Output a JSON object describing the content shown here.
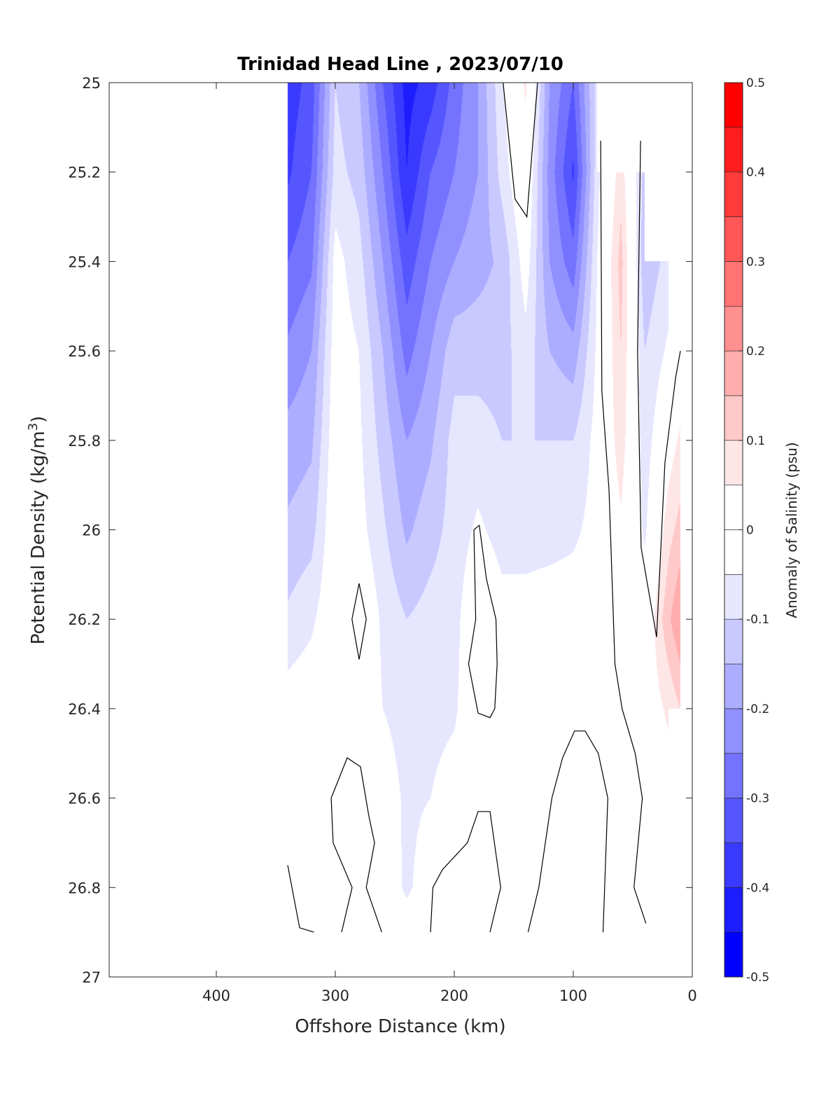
{
  "chart_data": {
    "type": "contourf",
    "title": "Trinidad Head Line , 2023/07/10",
    "xlabel": "Offshore Distance (km)",
    "ylabel": "Potential Density (kg/m",
    "ylabel_superscript": "3",
    "ylabel_suffix": ")",
    "xlim": [
      490,
      0
    ],
    "ylim": [
      27,
      25
    ],
    "x_direction": "reversed",
    "y_direction": "reversed (increasing downward)",
    "xticks": [
      400,
      300,
      200,
      100,
      0
    ],
    "xtick_labels": [
      "400",
      "300",
      "200",
      "100",
      "0"
    ],
    "yticks": [
      25,
      25.2,
      25.4,
      25.6,
      25.8,
      26,
      26.2,
      26.4,
      26.6,
      26.8,
      27
    ],
    "ytick_labels": [
      "25",
      "25.2",
      "25.4",
      "25.6",
      "25.8",
      "26",
      "26.2",
      "26.4",
      "26.6",
      "26.8",
      "27"
    ],
    "colorbar": {
      "label": "Anomaly of Salinity (psu)",
      "range": [
        -0.5,
        0.5
      ],
      "level_step": 0.05,
      "ticks": [
        0.5,
        0.4,
        0.3,
        0.2,
        0.1,
        0,
        -0.1,
        -0.2,
        -0.3,
        -0.4,
        -0.5
      ],
      "tick_labels": [
        "0.5",
        "0.4",
        "0.3",
        "0.2",
        "0.1",
        "0",
        "-0.1",
        "-0.2",
        "-0.3",
        "-0.4",
        "-0.5"
      ],
      "negative_color": "#0000ff",
      "positive_color": "#ff0000",
      "neutral_color": "#ffffff"
    },
    "grid": false,
    "x": [
      340,
      320,
      300,
      280,
      260,
      240,
      220,
      200,
      180,
      160,
      140,
      120,
      100,
      80,
      60,
      40,
      20,
      10
    ],
    "y": [
      25.0,
      25.2,
      25.4,
      25.6,
      25.8,
      26.0,
      26.2,
      26.4,
      26.6,
      26.8,
      26.9
    ],
    "z": [
      [
        -0.38,
        -0.33,
        -0.1,
        -0.15,
        -0.3,
        -0.42,
        -0.38,
        -0.28,
        -0.2,
        -0.06,
        0.06,
        -0.2,
        -0.3,
        -0.08,
        null,
        null,
        null,
        null
      ],
      [
        -0.36,
        -0.3,
        -0.08,
        -0.12,
        -0.25,
        -0.4,
        -0.3,
        -0.25,
        -0.2,
        -0.08,
        0.02,
        -0.22,
        -0.36,
        -0.07,
        0.08,
        -0.12,
        null,
        null
      ],
      [
        -0.3,
        -0.26,
        -0.03,
        -0.08,
        -0.2,
        -0.33,
        -0.25,
        -0.2,
        -0.17,
        -0.14,
        -0.02,
        -0.2,
        -0.28,
        -0.05,
        0.12,
        -0.14,
        -0.08,
        null
      ],
      [
        -0.24,
        -0.2,
        -0.02,
        -0.05,
        -0.15,
        -0.27,
        -0.2,
        -0.12,
        -0.12,
        -0.12,
        -0.07,
        -0.15,
        -0.18,
        -0.04,
        0.1,
        -0.1,
        -0.04,
        0.0
      ],
      [
        -0.18,
        -0.16,
        -0.01,
        -0.04,
        -0.12,
        -0.2,
        -0.16,
        -0.08,
        -0.08,
        -0.1,
        -0.1,
        -0.1,
        -0.1,
        -0.03,
        0.08,
        -0.08,
        0.02,
        0.06
      ],
      [
        -0.14,
        -0.12,
        0.0,
        -0.03,
        -0.09,
        -0.16,
        -0.12,
        -0.08,
        -0.04,
        -0.07,
        -0.07,
        -0.07,
        -0.06,
        -0.03,
        0.04,
        -0.06,
        0.08,
        0.12
      ],
      [
        -0.09,
        -0.06,
        0.0,
        0.01,
        -0.06,
        -0.1,
        -0.08,
        -0.07,
        0.01,
        -0.03,
        -0.03,
        -0.02,
        -0.02,
        -0.02,
        0.02,
        -0.01,
        0.14,
        0.2
      ],
      [
        -0.02,
        -0.01,
        0.0,
        -0.01,
        -0.05,
        -0.07,
        -0.07,
        -0.06,
        0.01,
        -0.01,
        -0.01,
        -0.01,
        -0.01,
        -0.02,
        0.01,
        0.01,
        0.06,
        0.1
      ],
      [
        -0.01,
        0.0,
        0.02,
        0.01,
        -0.02,
        -0.06,
        -0.05,
        -0.02,
        -0.01,
        -0.01,
        -0.01,
        0.01,
        0.03,
        -0.01,
        0.02,
        0.01,
        0.02,
        null
      ],
      [
        -0.01,
        0.01,
        0.01,
        0.0,
        -0.01,
        -0.06,
        -0.02,
        0.01,
        0.01,
        -0.01,
        -0.01,
        0.01,
        0.03,
        -0.01,
        0.02,
        0.01,
        0.01,
        null
      ],
      [
        0.0,
        0.01,
        0.0,
        0.0,
        0.0,
        -0.02,
        0.0,
        0.01,
        0.01,
        0.0,
        0.0,
        0.01,
        0.02,
        0.0,
        0.01,
        0.0,
        null,
        null
      ]
    ],
    "zero_contours": [
      [
        [
          340,
          26.75
        ],
        [
          330,
          26.89
        ],
        [
          318,
          26.9
        ]
      ],
      [
        [
          294.7,
          26.9
        ],
        [
          285.9,
          26.8
        ],
        [
          301.8,
          26.7
        ],
        [
          303.5,
          26.6
        ],
        [
          290,
          26.51
        ],
        [
          278.8,
          26.53
        ],
        [
          271.8,
          26.64
        ],
        [
          267,
          26.7
        ],
        [
          274,
          26.8
        ],
        [
          261,
          26.9
        ]
      ],
      [
        [
          280,
          26.12
        ],
        [
          274,
          26.2
        ],
        [
          280,
          26.29
        ],
        [
          286,
          26.2
        ],
        [
          280,
          26.12
        ]
      ],
      [
        [
          220,
          26.9
        ],
        [
          218,
          26.8
        ],
        [
          210,
          26.76
        ],
        [
          189,
          26.7
        ],
        [
          180,
          26.63
        ],
        [
          170,
          26.63
        ],
        [
          161,
          26.8
        ],
        [
          170,
          26.9
        ]
      ],
      [
        [
          183.5,
          26.0
        ],
        [
          179,
          25.99
        ],
        [
          173,
          26.11
        ],
        [
          165,
          26.2
        ],
        [
          164,
          26.3
        ],
        [
          166,
          26.4
        ],
        [
          170,
          26.42
        ],
        [
          180,
          26.41
        ],
        [
          188,
          26.3
        ],
        [
          182,
          26.2
        ],
        [
          183.5,
          26.0
        ]
      ],
      [
        [
          159,
          25.0
        ],
        [
          149,
          25.26
        ],
        [
          139,
          25.3
        ],
        [
          130,
          25.0
        ]
      ],
      [
        [
          138,
          26.9
        ],
        [
          129,
          26.8
        ],
        [
          118,
          26.6
        ],
        [
          109,
          26.51
        ],
        [
          99,
          26.45
        ],
        [
          90,
          26.45
        ],
        [
          79,
          26.5
        ],
        [
          71,
          26.6
        ],
        [
          75,
          26.9
        ]
      ],
      [
        [
          77,
          25.13
        ],
        [
          76,
          25.69
        ],
        [
          70,
          25.91
        ],
        [
          65,
          26.3
        ],
        [
          59,
          26.4
        ],
        [
          48,
          26.5
        ],
        [
          42,
          26.6
        ],
        [
          49,
          26.8
        ],
        [
          39,
          26.88
        ]
      ],
      [
        [
          43.5,
          25.13
        ],
        [
          46,
          25.6
        ],
        [
          43,
          26.04
        ],
        [
          30,
          26.24
        ],
        [
          23,
          25.85
        ],
        [
          14,
          25.66
        ],
        [
          10,
          25.6
        ]
      ]
    ]
  }
}
